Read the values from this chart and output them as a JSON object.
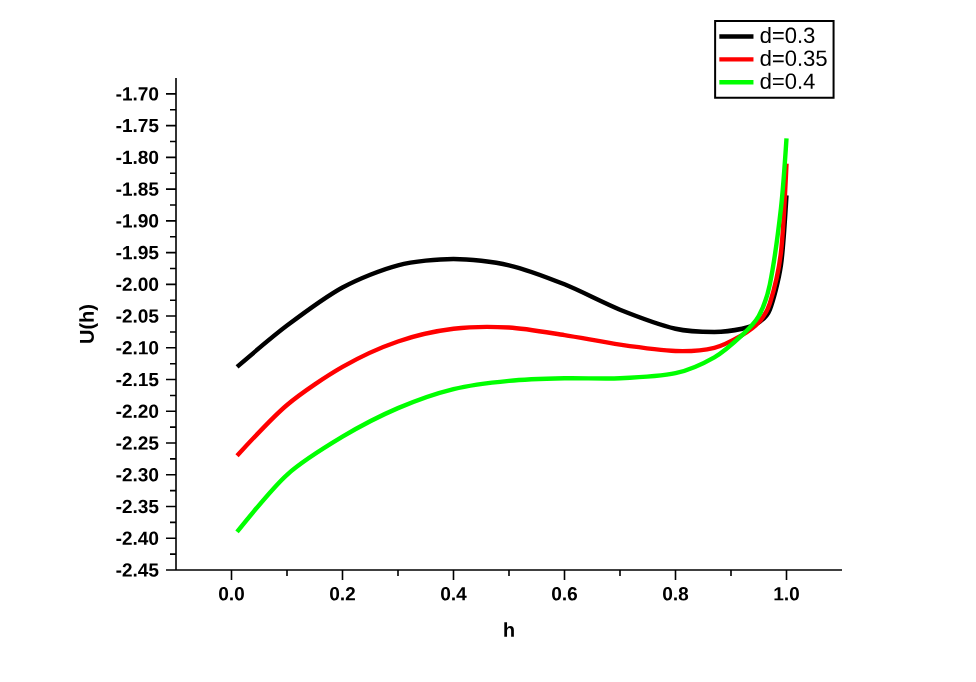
{
  "chart_data": {
    "type": "line",
    "xlabel": "h",
    "ylabel": "U(h)",
    "xlim": [
      -0.1,
      1.1
    ],
    "ylim": [
      -2.45,
      -1.675
    ],
    "xticks": [
      {
        "value": 0,
        "label": "0.0"
      },
      {
        "value": 0.2,
        "label": "0.2"
      },
      {
        "value": 0.4,
        "label": "0.4"
      },
      {
        "value": 0.6,
        "label": "0.6"
      },
      {
        "value": 0.8,
        "label": "0.8"
      },
      {
        "value": 1,
        "label": "1.0"
      }
    ],
    "yticks": [
      {
        "value": -2.45,
        "label": "-2.45"
      },
      {
        "value": -2.4,
        "label": "-2.40"
      },
      {
        "value": -2.35,
        "label": "-2.35"
      },
      {
        "value": -2.3,
        "label": "-2.30"
      },
      {
        "value": -2.25,
        "label": "-2.25"
      },
      {
        "value": -2.2,
        "label": "-2.20"
      },
      {
        "value": -2.15,
        "label": "-2.15"
      },
      {
        "value": -2.1,
        "label": "-2.10"
      },
      {
        "value": -2.05,
        "label": "-2.05"
      },
      {
        "value": -2,
        "label": "-2.00"
      },
      {
        "value": -1.95,
        "label": "-1.95"
      },
      {
        "value": -1.9,
        "label": "-1.90"
      },
      {
        "value": -1.85,
        "label": "-1.85"
      },
      {
        "value": -1.8,
        "label": "-1.80"
      },
      {
        "value": -1.75,
        "label": "-1.75"
      },
      {
        "value": -1.7,
        "label": "-1.70"
      }
    ],
    "x": [
      0.01,
      0.1,
      0.2,
      0.3,
      0.4,
      0.5,
      0.6,
      0.7,
      0.8,
      0.87,
      0.92,
      0.95,
      0.97,
      0.99,
      1.0
    ],
    "legend": "top right",
    "grid": false,
    "marker": "none",
    "line_style": "solid",
    "series": [
      {
        "name": "d=0.3",
        "color": "#000000",
        "values": [
          -2.13,
          -2.065,
          -2.005,
          -1.97,
          -1.96,
          -1.97,
          -2.0,
          -2.04,
          -2.07,
          -2.075,
          -2.07,
          -2.06,
          -2.04,
          -1.97,
          -1.86
        ]
      },
      {
        "name": "d=0.35",
        "color": "#ff0000",
        "values": [
          -2.27,
          -2.19,
          -2.13,
          -2.09,
          -2.07,
          -2.068,
          -2.08,
          -2.095,
          -2.105,
          -2.1,
          -2.08,
          -2.06,
          -2.03,
          -1.95,
          -1.81
        ]
      },
      {
        "name": "d=0.4",
        "color": "#00ff00",
        "values": [
          -2.39,
          -2.3,
          -2.24,
          -2.195,
          -2.165,
          -2.152,
          -2.148,
          -2.148,
          -2.14,
          -2.115,
          -2.08,
          -2.05,
          -2.0,
          -1.88,
          -1.77
        ]
      }
    ]
  }
}
